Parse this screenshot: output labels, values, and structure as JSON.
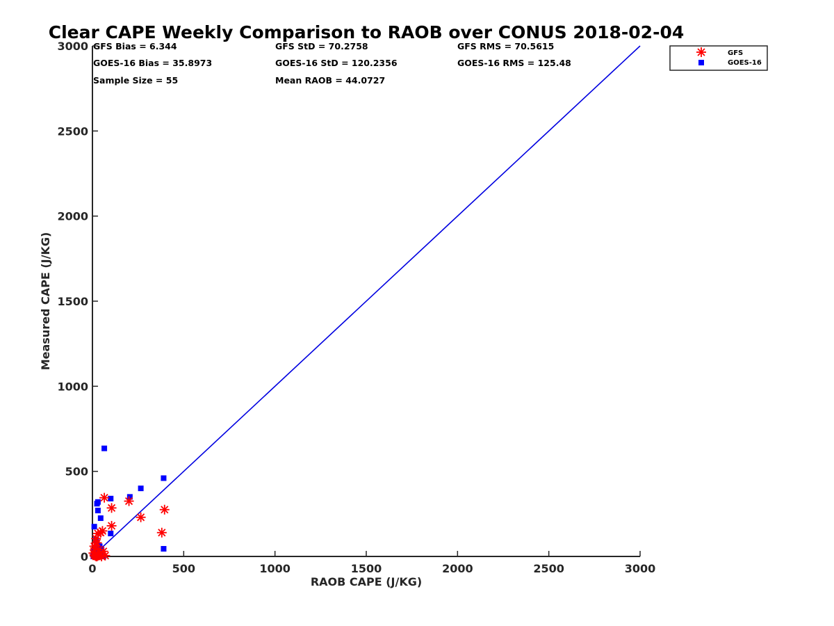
{
  "chart_data": {
    "type": "scatter",
    "title": "Clear CAPE Weekly Comparison to RAOB over CONUS 2018-02-04",
    "xlabel": "RAOB CAPE (J/KG)",
    "ylabel": "Measured CAPE (J/KG)",
    "xlim": [
      0,
      3000
    ],
    "ylim": [
      0,
      3000
    ],
    "xticks": [
      "0",
      "500",
      "1000",
      "1500",
      "2000",
      "2500",
      "3000"
    ],
    "yticks": [
      "0",
      "500",
      "1000",
      "1500",
      "2000",
      "2500",
      "3000"
    ],
    "grid": false,
    "legend_position": "top-right (outside plot)",
    "stats": [
      [
        "GFS Bias = 6.344",
        "GFS StD = 70.2758",
        "GFS RMS = 70.5615"
      ],
      [
        "GOES-16 Bias = 35.8973",
        "GOES-16 StD = 120.2356",
        "GOES-16 RMS = 125.48"
      ],
      [
        "Sample Size = 55",
        "Mean RAOB = 44.0727",
        ""
      ]
    ],
    "reference_line": {
      "x": [
        0,
        3000
      ],
      "y": [
        0,
        3000
      ],
      "color": "#0000e0"
    },
    "series": [
      {
        "name": "GFS",
        "marker": "asterisk",
        "color": "#ff0000",
        "x": [
          65,
          105,
          200,
          265,
          395,
          380,
          105,
          55,
          45,
          30,
          20,
          25,
          10,
          15,
          35,
          60,
          5,
          10,
          15,
          20,
          25,
          30,
          40,
          50,
          70
        ],
        "y": [
          345,
          285,
          325,
          230,
          275,
          140,
          180,
          150,
          140,
          135,
          105,
          80,
          60,
          50,
          40,
          30,
          20,
          10,
          5,
          0,
          0,
          5,
          10,
          0,
          5
        ]
      },
      {
        "name": "GOES-16",
        "marker": "square",
        "color": "#0000ff",
        "x": [
          65,
          390,
          265,
          205,
          100,
          30,
          25,
          45,
          30,
          10,
          100,
          390,
          20,
          25,
          40,
          50,
          10,
          15,
          30,
          35,
          60,
          5,
          20,
          45,
          55
        ],
        "y": [
          635,
          460,
          400,
          350,
          340,
          320,
          310,
          225,
          270,
          175,
          135,
          45,
          100,
          80,
          60,
          40,
          30,
          20,
          10,
          5,
          0,
          0,
          30,
          15,
          5
        ]
      }
    ]
  }
}
